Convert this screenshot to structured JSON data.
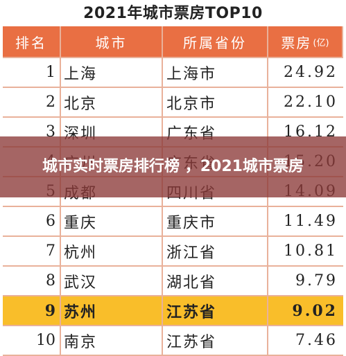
{
  "title": "2021年城市票房TOP10",
  "table": {
    "headers": {
      "rank": "排名",
      "city": "城市",
      "province": "所属省份",
      "box_office": "票房",
      "unit": "(亿)"
    },
    "rows": [
      {
        "rank": "1",
        "city": "上海",
        "province": "上海市",
        "box_office": "24.92"
      },
      {
        "rank": "2",
        "city": "北京",
        "province": "北京市",
        "box_office": "22.10"
      },
      {
        "rank": "3",
        "city": "深圳",
        "province": "广东省",
        "box_office": "16.12"
      },
      {
        "rank": "4",
        "city": "广州",
        "province": "广东省",
        "box_office": "15.20"
      },
      {
        "rank": "5",
        "city": "成都",
        "province": "四川省",
        "box_office": "14.09"
      },
      {
        "rank": "6",
        "city": "重庆",
        "province": "重庆市",
        "box_office": "11.49"
      },
      {
        "rank": "7",
        "city": "杭州",
        "province": "浙江省",
        "box_office": "10.81"
      },
      {
        "rank": "8",
        "city": "武汉",
        "province": "湖北省",
        "box_office": "9.79"
      },
      {
        "rank": "9",
        "city": "苏州",
        "province": "江苏省",
        "box_office": "9.02"
      },
      {
        "rank": "10",
        "city": "南京",
        "province": "江苏省",
        "box_office": "7.46"
      }
    ]
  },
  "overlay_caption": "城市实时票房排行榜 ，2021城市票房",
  "colors": {
    "header_bg": "#e96f43",
    "highlight_bg": "#f9be2a",
    "border": "#e9b19a",
    "overlay_bg": "#8c3a38"
  }
}
